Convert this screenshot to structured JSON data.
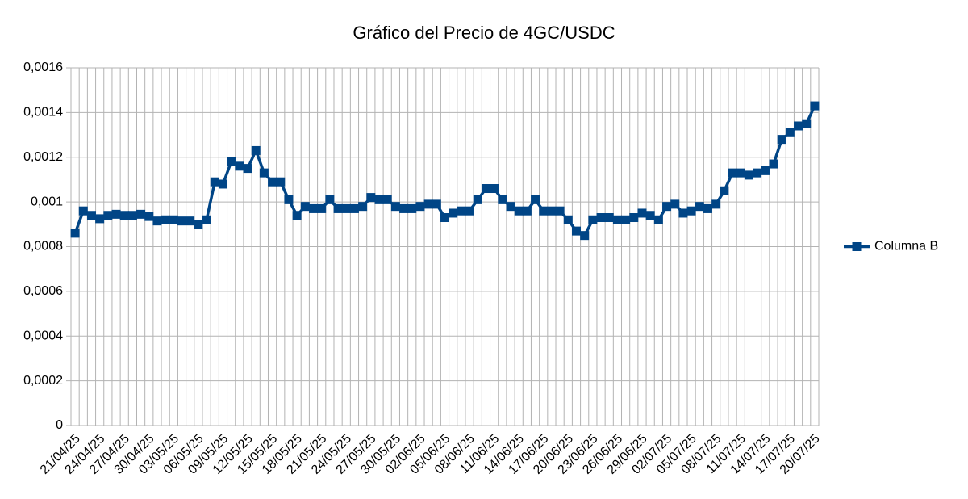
{
  "chart_data": {
    "type": "line",
    "title": "Gráfico del Precio de 4GC/USDC",
    "categories": [
      "21/04/25",
      null,
      null,
      "24/04/25",
      null,
      null,
      "27/04/25",
      null,
      null,
      "30/04/25",
      null,
      null,
      "03/05/25",
      null,
      null,
      "06/05/25",
      null,
      null,
      "09/05/25",
      null,
      null,
      "12/05/25",
      null,
      null,
      "15/05/25",
      null,
      null,
      "18/05/25",
      null,
      null,
      "21/05/25",
      null,
      null,
      "24/05/25",
      null,
      null,
      "27/05/25",
      null,
      null,
      "30/05/25",
      null,
      null,
      "02/06/25",
      null,
      null,
      "05/06/25",
      null,
      null,
      "08/06/25",
      null,
      null,
      "11/06/25",
      null,
      null,
      "14/06/25",
      null,
      null,
      "17/06/25",
      null,
      null,
      "20/06/25",
      null,
      null,
      "23/06/25",
      null,
      null,
      "26/06/25",
      null,
      null,
      "29/06/25",
      null,
      null,
      "02/07/25",
      null,
      null,
      "05/07/25",
      null,
      null,
      "08/07/25",
      null,
      null,
      "11/07/25",
      null,
      null,
      "14/07/25",
      null,
      null,
      "17/07/25",
      null,
      null,
      "20/07/25"
    ],
    "series": [
      {
        "name": "Columna B",
        "color": "#004586",
        "values": [
          0.00086,
          0.00096,
          0.00094,
          0.000925,
          0.00094,
          0.000945,
          0.00094,
          0.00094,
          0.000945,
          0.000935,
          0.000915,
          0.00092,
          0.00092,
          0.000915,
          0.000915,
          0.0009,
          0.00092,
          0.00109,
          0.00108,
          0.00118,
          0.00116,
          0.00115,
          0.00123,
          0.00113,
          0.00109,
          0.00109,
          0.00101,
          0.00094,
          0.00098,
          0.00097,
          0.00097,
          0.00101,
          0.00097,
          0.00097,
          0.00097,
          0.00098,
          0.00102,
          0.00101,
          0.00101,
          0.00098,
          0.00097,
          0.00097,
          0.00098,
          0.00099,
          0.00099,
          0.00093,
          0.00095,
          0.00096,
          0.00096,
          0.00101,
          0.00106,
          0.00106,
          0.00101,
          0.00098,
          0.00096,
          0.00096,
          0.00101,
          0.00096,
          0.00096,
          0.00096,
          0.00092,
          0.00087,
          0.00085,
          0.00092,
          0.00093,
          0.00093,
          0.00092,
          0.00092,
          0.00093,
          0.00095,
          0.00094,
          0.00092,
          0.00098,
          0.00099,
          0.00095,
          0.00096,
          0.00098,
          0.00097,
          0.00099,
          0.00105,
          0.00113,
          0.00113,
          0.00112,
          0.00113,
          0.00114,
          0.00117,
          0.00128,
          0.00131,
          0.00134,
          0.00135,
          0.00143
        ]
      }
    ],
    "ylim": [
      0,
      0.0016
    ],
    "yticks": [
      0,
      {
        "value": 0.0002,
        "label": "0,0002"
      },
      {
        "value": 0.0004,
        "label": "0,0004"
      },
      {
        "value": 0.0006,
        "label": "0,0006"
      },
      {
        "value": 0.0008,
        "label": "0,0008"
      },
      {
        "value": 0.001,
        "label": "0,001"
      },
      {
        "value": 0.0012,
        "label": "0,0012"
      },
      {
        "value": 0.0014,
        "label": "0,0014"
      },
      {
        "value": 0.0016,
        "label": "0,0016"
      }
    ],
    "grid": true,
    "legend": "right"
  }
}
